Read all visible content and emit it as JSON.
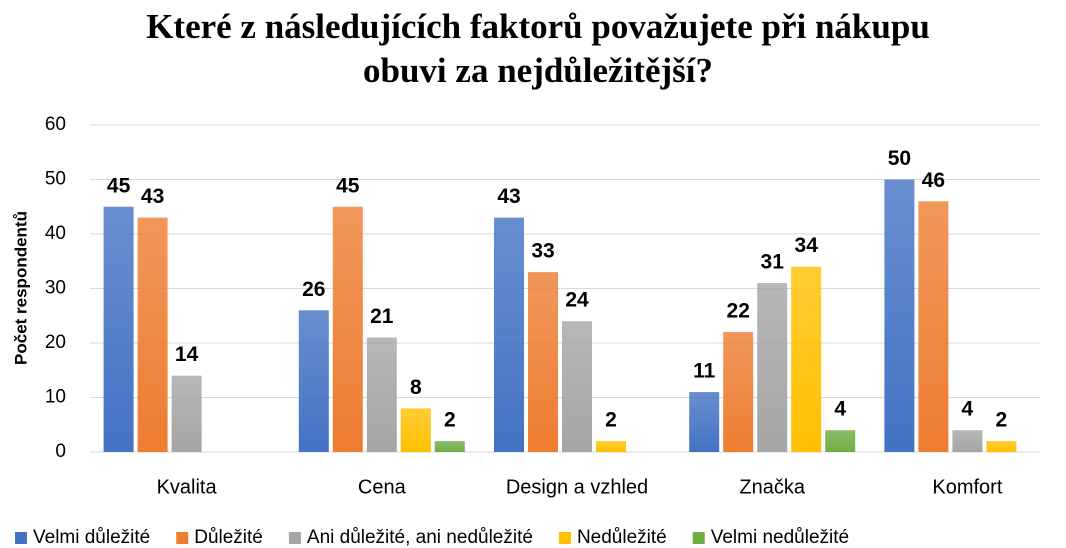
{
  "chart_data": {
    "type": "bar",
    "title": [
      "Které z následujících faktorů považujete při nákupu",
      "obuvi za nejdůležitější?"
    ],
    "y_label": "Počet respondentů",
    "categories": [
      "Kvalita",
      "Cena",
      "Design a vzhled",
      "Značka",
      "Komfort"
    ],
    "series": [
      {
        "name": "Velmi důležité",
        "color": "#4472c4",
        "values": [
          45,
          26,
          43,
          11,
          50
        ]
      },
      {
        "name": "Důležité",
        "color": "#ed7d31",
        "values": [
          43,
          45,
          33,
          22,
          46
        ]
      },
      {
        "name": "Ani důležité, ani nedůležité",
        "color": "#a5a5a5",
        "values": [
          14,
          21,
          24,
          31,
          4
        ]
      },
      {
        "name": "Nedůležité",
        "color": "#ffc000",
        "values": [
          null,
          8,
          2,
          34,
          2
        ]
      },
      {
        "name": "Velmi nedůležité",
        "color": "#70ad47",
        "values": [
          null,
          2,
          null,
          4,
          null
        ]
      }
    ],
    "ylim": [
      0,
      60
    ],
    "yticks": [
      0,
      10,
      20,
      30,
      40,
      50,
      60
    ],
    "grid": true,
    "legend": "bottom"
  }
}
